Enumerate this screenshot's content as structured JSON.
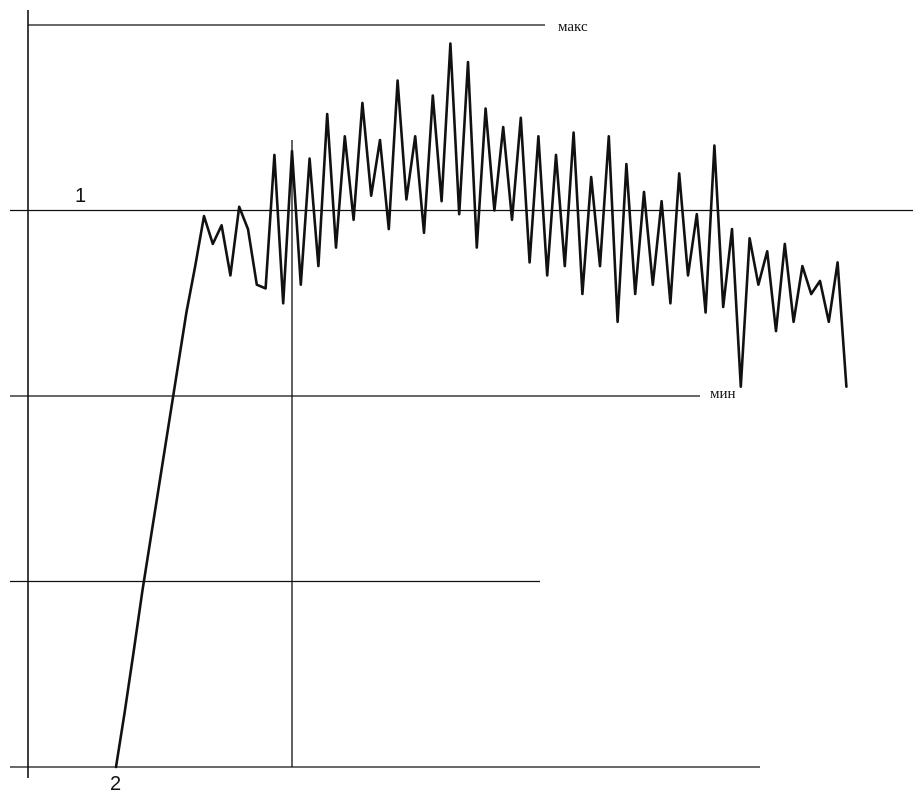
{
  "chart_data": {
    "type": "line",
    "title": "",
    "xlabel": "",
    "ylabel": "",
    "grid": false,
    "ylim": [
      0,
      4
    ],
    "reference_lines": [
      {
        "name": "max",
        "y": 4,
        "label": "макс"
      },
      {
        "name": "level-1",
        "y": 3,
        "label": "1"
      },
      {
        "name": "min",
        "y": 2,
        "label": "мин"
      },
      {
        "name": "mid",
        "y": 1,
        "label": ""
      },
      {
        "name": "base",
        "y": 0,
        "label": ""
      }
    ],
    "vertical_marker": {
      "x": 0.3
    },
    "markers": [
      {
        "name": "point-2",
        "label": "2",
        "x": 0.1,
        "y": 0
      }
    ],
    "series": [
      {
        "name": "",
        "x": [
          0.1,
          0.11,
          0.12,
          0.13,
          0.14,
          0.15,
          0.16,
          0.17,
          0.18,
          0.19,
          0.2,
          0.21,
          0.22,
          0.23,
          0.24,
          0.25,
          0.26,
          0.27,
          0.28,
          0.29,
          0.3,
          0.31,
          0.32,
          0.33,
          0.34,
          0.35,
          0.36,
          0.37,
          0.38,
          0.39,
          0.4,
          0.41,
          0.42,
          0.43,
          0.44,
          0.45,
          0.46,
          0.47,
          0.48,
          0.49,
          0.5,
          0.51,
          0.52,
          0.53,
          0.54,
          0.55,
          0.56,
          0.57,
          0.58,
          0.59,
          0.6,
          0.61,
          0.62,
          0.63,
          0.64,
          0.65,
          0.66,
          0.67,
          0.68,
          0.69,
          0.7,
          0.71,
          0.72,
          0.73,
          0.74,
          0.75,
          0.76,
          0.77,
          0.78,
          0.79,
          0.8,
          0.81,
          0.82,
          0.83,
          0.84,
          0.85,
          0.86,
          0.87,
          0.88,
          0.89,
          0.9,
          0.91,
          0.92,
          0.93
        ],
        "y": [
          0.0,
          0.3,
          0.62,
          0.95,
          1.25,
          1.55,
          1.85,
          2.15,
          2.45,
          2.7,
          2.97,
          2.82,
          2.92,
          2.65,
          3.02,
          2.9,
          2.6,
          2.58,
          3.3,
          2.5,
          3.32,
          2.6,
          3.28,
          2.7,
          3.52,
          2.8,
          3.4,
          2.95,
          3.58,
          3.08,
          3.38,
          2.9,
          3.7,
          3.06,
          3.4,
          2.88,
          3.62,
          3.05,
          3.9,
          2.98,
          3.8,
          2.8,
          3.55,
          3.0,
          3.45,
          2.95,
          3.5,
          2.72,
          3.4,
          2.65,
          3.3,
          2.7,
          3.42,
          2.55,
          3.18,
          2.7,
          3.4,
          2.4,
          3.25,
          2.55,
          3.1,
          2.6,
          3.05,
          2.5,
          3.2,
          2.65,
          2.98,
          2.45,
          3.35,
          2.48,
          2.9,
          2.05,
          2.85,
          2.6,
          2.78,
          2.35,
          2.82,
          2.4,
          2.7,
          2.55,
          2.62,
          2.4,
          2.72,
          2.05
        ]
      }
    ]
  }
}
